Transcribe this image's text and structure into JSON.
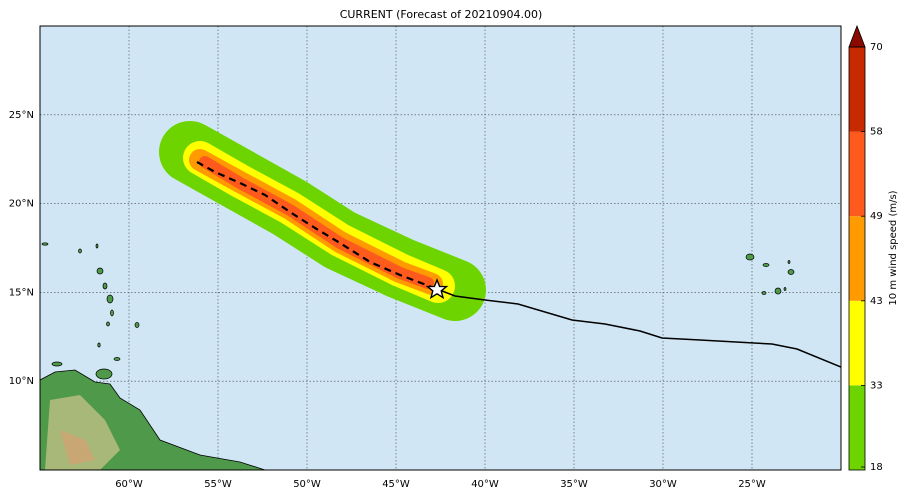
{
  "map": {
    "title": "CURRENT (Forecast of 20210904.00)",
    "lonlim": [
      -65,
      -20
    ],
    "latlim": [
      5,
      30
    ],
    "lon_ticks": [
      {
        "value": -60,
        "label": "60°W"
      },
      {
        "value": -55,
        "label": "55°W"
      },
      {
        "value": -50,
        "label": "50°W"
      },
      {
        "value": -45,
        "label": "45°W"
      },
      {
        "value": -40,
        "label": "40°W"
      },
      {
        "value": -35,
        "label": "35°W"
      },
      {
        "value": -30,
        "label": "30°W"
      },
      {
        "value": -25,
        "label": "25°W"
      }
    ],
    "lat_ticks": [
      {
        "value": 25,
        "label": "25°N"
      },
      {
        "value": 20,
        "label": "20°N"
      },
      {
        "value": 15,
        "label": "15°N"
      },
      {
        "value": 10,
        "label": "10°N"
      }
    ],
    "colorbar": {
      "label": "10 m wind speed (m/s)",
      "ticks": [
        18,
        33,
        43,
        49,
        58,
        70
      ],
      "colors": [
        "#6dd400",
        "#ffff00",
        "#ff9a00",
        "#ff5a1e",
        "#c82a00"
      ],
      "extend_color": "#8b0a00"
    }
  }
}
